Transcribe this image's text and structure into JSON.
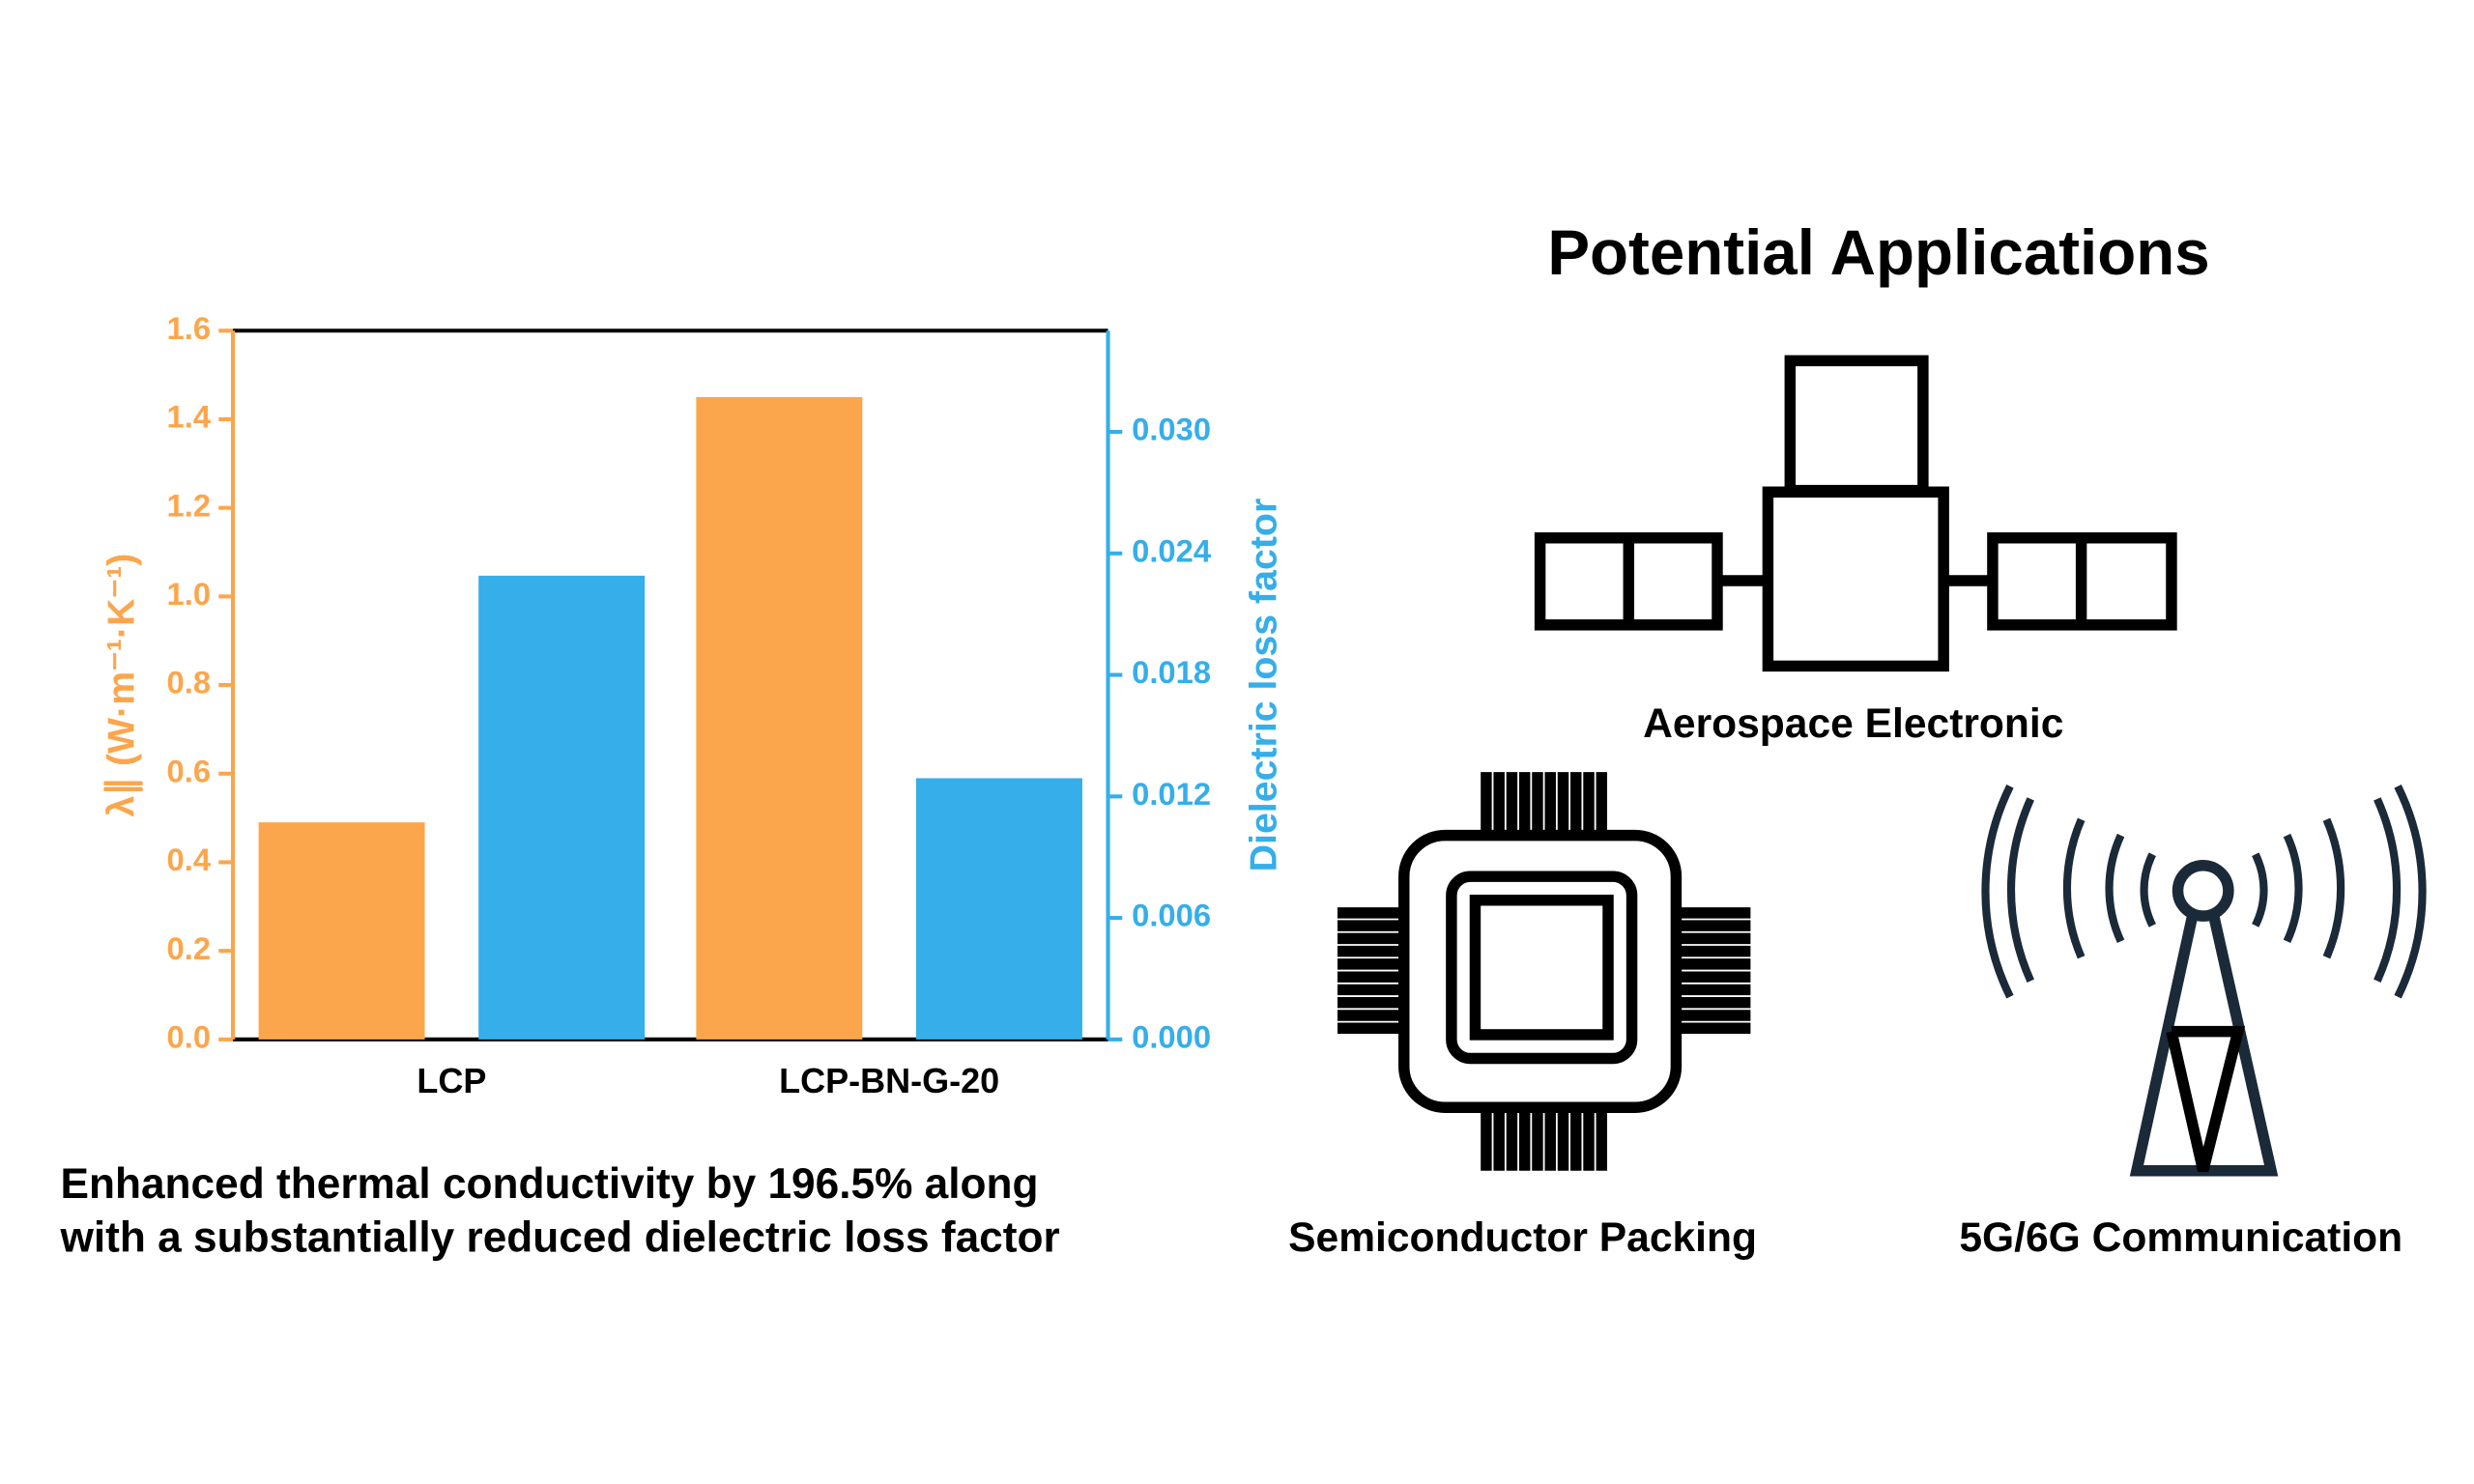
{
  "chart_data": {
    "type": "bar",
    "categories": [
      "LCP",
      "LCP-BN-G-20"
    ],
    "series": [
      {
        "color": "#fba64c",
        "values": [
          0.49,
          1.45
        ]
      },
      {
        "color": "#35aeea",
        "values": [
          0.0229,
          0.0129
        ],
        "axis": "y2"
      }
    ],
    "y_label": "λ∥ (W·m⁻¹·K⁻¹)",
    "y2_label": "Dielectric loss factor",
    "ylim": [
      0,
      1.6
    ],
    "yticks": [
      {
        "value": 0,
        "label": "0.0"
      },
      0.2,
      0.4,
      0.6,
      0.8,
      {
        "value": 1,
        "label": "1.0"
      },
      1.2,
      1.4,
      1.6
    ],
    "y2lim": [
      0,
      0.035
    ],
    "y2ticks": [
      {
        "value": 0,
        "label": "0.000"
      },
      {
        "value": 0.006,
        "label": "0.006"
      },
      {
        "value": 0.012,
        "label": "0.012"
      },
      {
        "value": 0.018,
        "label": "0.018"
      },
      {
        "value": 0.024,
        "label": "0.024"
      },
      {
        "value": 0.03,
        "label": "0.030"
      }
    ],
    "y_color": "#fba64c",
    "y2_color": "#35aeea"
  },
  "caption": [
    "Enhanced thermal conductivity by 196.5% along",
    "with a substantially reduced dielectric loss factor"
  ],
  "applications": {
    "title": "Potential Applications",
    "items": [
      "Aerospace Electronic",
      "Semiconductor Packing",
      "5G/6G Communication"
    ]
  }
}
